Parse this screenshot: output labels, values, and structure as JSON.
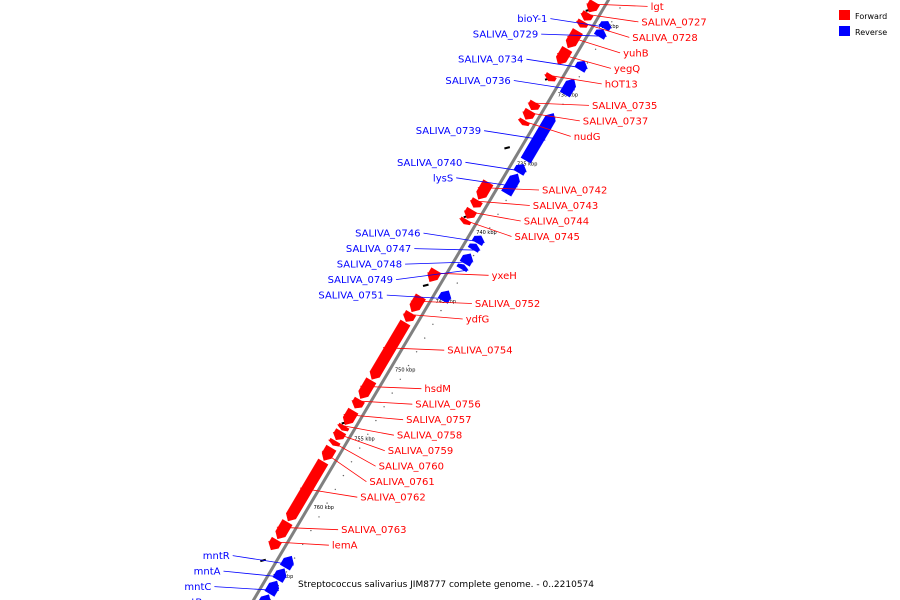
{
  "caption": "Streptococcus salivarius JIM8777 complete genome. - 0..2210574",
  "legend": [
    {
      "label": "Forward",
      "color": "#ff0000"
    },
    {
      "label": "Reverse",
      "color": "#0000ff"
    }
  ],
  "colors": {
    "forward": "#ff0000",
    "reverse": "#0000ff",
    "backbone": "#808080"
  },
  "ticks": [
    {
      "label": "725 kbp",
      "kb": 725
    },
    {
      "label": "730 kbp",
      "kb": 730
    },
    {
      "label": "735 kbp",
      "kb": 735
    },
    {
      "label": "740 kbp",
      "kb": 740
    },
    {
      "label": "745 kbp",
      "kb": 745
    },
    {
      "label": "750 kbp",
      "kb": 750
    },
    {
      "label": "755 kbp",
      "kb": 755
    },
    {
      "label": "760 kbp",
      "kb": 760
    },
    {
      "label": "765 kbp",
      "kb": 765
    }
  ],
  "forward_genes": [
    {
      "name": "lgt",
      "start": 724.5,
      "end": 725.2
    },
    {
      "name": "SALIVA_0727",
      "start": 725.3,
      "end": 725.8
    },
    {
      "name": "SALIVA_0728",
      "start": 725.9,
      "end": 726.3
    },
    {
      "name": "yuhB",
      "start": 726.6,
      "end": 727.8
    },
    {
      "name": "yegQ",
      "start": 727.9,
      "end": 729.0
    },
    {
      "name": "hOT13",
      "start": 729.8,
      "end": 730.2
    },
    {
      "name": "SALIVA_0735",
      "start": 731.8,
      "end": 732.3
    },
    {
      "name": "SALIVA_0737",
      "start": 732.4,
      "end": 733.0
    },
    {
      "name": "nudG",
      "start": 733.1,
      "end": 733.4
    },
    {
      "name": "SALIVA_0742",
      "start": 737.6,
      "end": 738.8
    },
    {
      "name": "SALIVA_0743",
      "start": 738.9,
      "end": 739.4
    },
    {
      "name": "SALIVA_0744",
      "start": 739.6,
      "end": 740.2
    },
    {
      "name": "SALIVA_0745",
      "start": 740.3,
      "end": 740.6
    },
    {
      "name": "yxeH",
      "start": 744.0,
      "end": 744.8
    },
    {
      "name": "SALIVA_0752",
      "start": 745.9,
      "end": 747.0
    },
    {
      "name": "ydfG",
      "start": 747.1,
      "end": 747.7
    },
    {
      "name": "SALIVA_0754",
      "start": 747.8,
      "end": 751.9
    },
    {
      "name": "hsdM",
      "start": 752.0,
      "end": 753.3
    },
    {
      "name": "SALIVA_0756",
      "start": 753.4,
      "end": 754.0
    },
    {
      "name": "SALIVA_0757",
      "start": 754.2,
      "end": 755.2
    },
    {
      "name": "SALIVA_0758",
      "start": 755.3,
      "end": 755.6
    },
    {
      "name": "SALIVA_0759",
      "start": 755.7,
      "end": 756.3
    },
    {
      "name": "SALIVA_0760",
      "start": 756.4,
      "end": 756.7
    },
    {
      "name": "SALIVA_0761",
      "start": 756.9,
      "end": 757.8
    },
    {
      "name": "SALIVA_0762",
      "start": 757.9,
      "end": 762.2
    },
    {
      "name": "SALIVA_0763",
      "start": 762.3,
      "end": 763.5
    },
    {
      "name": "lemA",
      "start": 763.6,
      "end": 764.3
    }
  ],
  "reverse_genes": [
    {
      "name": "bioY-1",
      "start": 725.1,
      "end": 725.6
    },
    {
      "name": "SALIVA_0729",
      "start": 725.7,
      "end": 726.2
    },
    {
      "name": "SALIVA_0734",
      "start": 728.0,
      "end": 728.6
    },
    {
      "name": "SALIVA_0736",
      "start": 729.3,
      "end": 730.4
    },
    {
      "name": "SALIVA_0739",
      "start": 731.8,
      "end": 735.2
    },
    {
      "name": "SALIVA_0740",
      "start": 735.5,
      "end": 736.1
    },
    {
      "name": "lysS",
      "start": 736.2,
      "end": 737.6
    },
    {
      "name": "SALIVA_0746",
      "start": 740.7,
      "end": 741.2
    },
    {
      "name": "SALIVA_0747",
      "start": 741.3,
      "end": 741.7
    },
    {
      "name": "SALIVA_0748",
      "start": 742.0,
      "end": 742.7
    },
    {
      "name": "SALIVA_0749",
      "start": 742.8,
      "end": 743.1
    },
    {
      "name": "SALIVA_0751",
      "start": 744.7,
      "end": 745.4
    },
    {
      "name": "mntR",
      "start": 764.0,
      "end": 764.8
    },
    {
      "name": "mntA",
      "start": 764.9,
      "end": 765.7
    },
    {
      "name": "mntC",
      "start": 765.8,
      "end": 766.7
    },
    {
      "name": "mntB",
      "start": 766.8,
      "end": 767.6
    }
  ]
}
